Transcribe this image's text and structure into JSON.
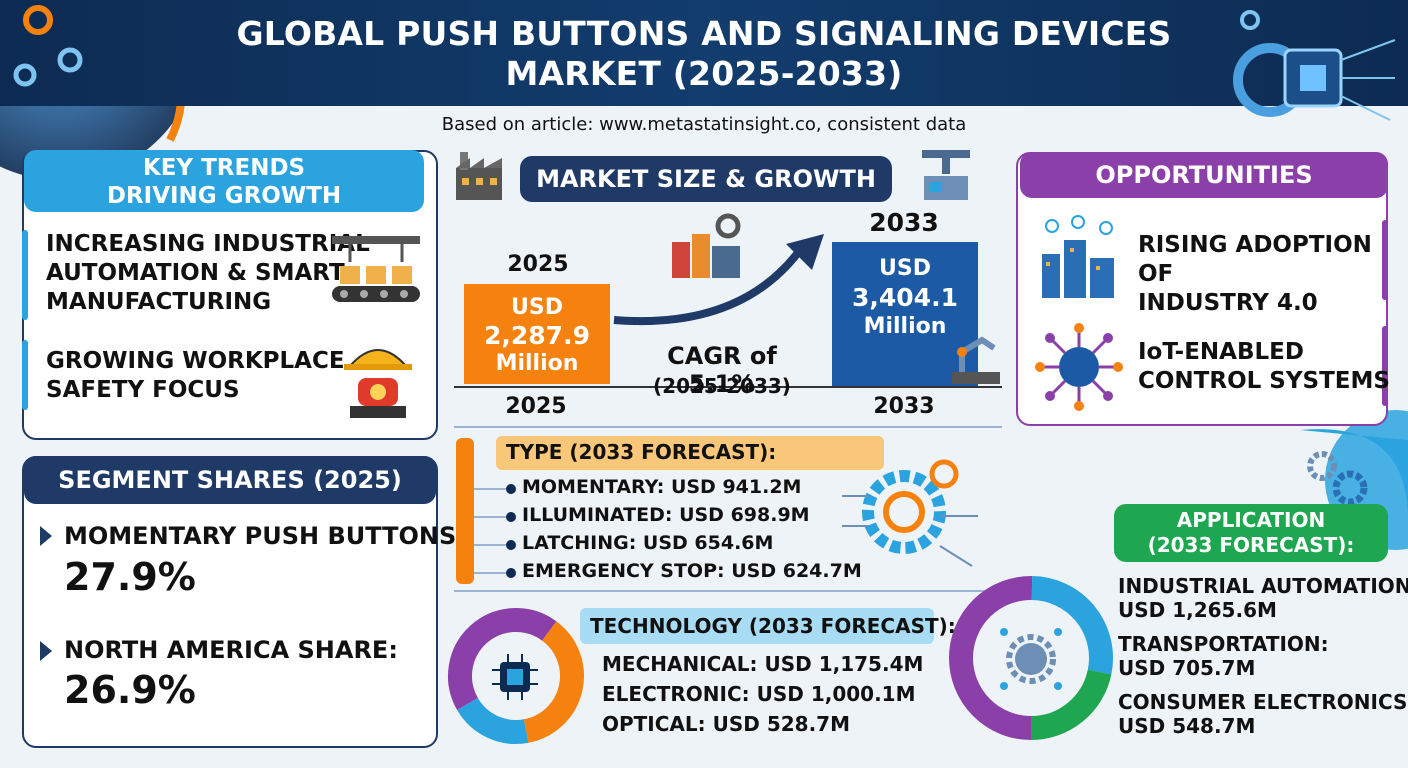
{
  "title_line1": "GLOBAL PUSH BUTTONS AND SIGNALING DEVICES",
  "title_line2": "MARKET (2025-2033)",
  "subtitle": "Based on article: www.metastatinsight.co, consistent data",
  "trends": {
    "header_line1": "KEY TRENDS",
    "header_line2": "DRIVING GROWTH",
    "items": [
      {
        "lines": [
          "INCREASING INDUSTRIAL",
          "AUTOMATION & SMART",
          "MANUFACTURING"
        ],
        "icon": "conveyor-icon"
      },
      {
        "lines": [
          "GROWING WORKPLACE",
          "SAFETY FOCUS"
        ],
        "icon": "hardhat-alarm-icon"
      }
    ]
  },
  "segments": {
    "header": "SEGMENT SHARES (2025)",
    "items": [
      {
        "label": "MOMENTARY PUSH BUTTONS:",
        "value": "27.9%"
      },
      {
        "label": "NORTH AMERICA SHARE:",
        "value": "26.9%"
      }
    ]
  },
  "market": {
    "header": "MARKET SIZE & GROWTH",
    "y2025_top": "2025",
    "y2025_bottom": "2025",
    "v2025": {
      "l1": "USD",
      "l2": "2,287.9",
      "l3": "Million"
    },
    "y2033_top": "2033",
    "y2033_bottom": "2033",
    "v2033": {
      "l1": "USD",
      "l2": "3,404.1",
      "l3": "Million"
    },
    "cagr": "CAGR of 5.1%",
    "cagr_period": "(2025-2033)",
    "colors": {
      "bar2025": "#f5820f",
      "bar2033": "#1c5aa6"
    }
  },
  "opportunities": {
    "header": "OPPORTUNITIES",
    "items": [
      {
        "lines": [
          "RISING ADOPTION OF",
          "INDUSTRY 4.0"
        ],
        "icon": "smart-city-icon"
      },
      {
        "lines": [
          "IoT-ENABLED",
          "CONTROL SYSTEMS"
        ],
        "icon": "iot-network-icon"
      }
    ]
  },
  "type": {
    "header_bold": "TYPE",
    "header_rest": " (2033 FORECAST):",
    "items": [
      "MOMENTARY: USD 941.2M",
      "ILLUMINATED: USD 698.9M",
      "LATCHING: USD 654.6M",
      "EMERGENCY STOP: USD 624.7M"
    ]
  },
  "technology": {
    "header_bold": "TECHNOLOGY",
    "header_rest": " (2033 FORECAST):",
    "items": [
      "MECHANICAL: USD 1,175.4M",
      "ELECTRONIC: USD 1,000.1M",
      "OPTICAL: USD 528.7M"
    ],
    "donut_values": [
      1175.4,
      1000.1,
      528.7
    ],
    "donut_colors": [
      "#8b3fa8",
      "#f5820f",
      "#2aa3df"
    ]
  },
  "application": {
    "header_line1": "APPLICATION",
    "header_line2": "(2033 FORECAST):",
    "items": [
      {
        "label": "INDUSTRIAL AUTOMATION:",
        "value": "USD 1,265.6M"
      },
      {
        "label": "TRANSPORTATION:",
        "value": "USD 705.7M"
      },
      {
        "label": "CONSUMER ELECTRONICS:",
        "value": "USD 548.7M"
      }
    ],
    "donut_values": [
      1265.6,
      705.7,
      548.7
    ],
    "donut_colors": [
      "#8b3fa8",
      "#2aa3df",
      "#1ea650"
    ]
  },
  "colors": {
    "navy": "#0d2b52",
    "blue": "#2aa3df",
    "orange": "#f5820f",
    "purple": "#8b3fa8",
    "green": "#1ea650"
  }
}
